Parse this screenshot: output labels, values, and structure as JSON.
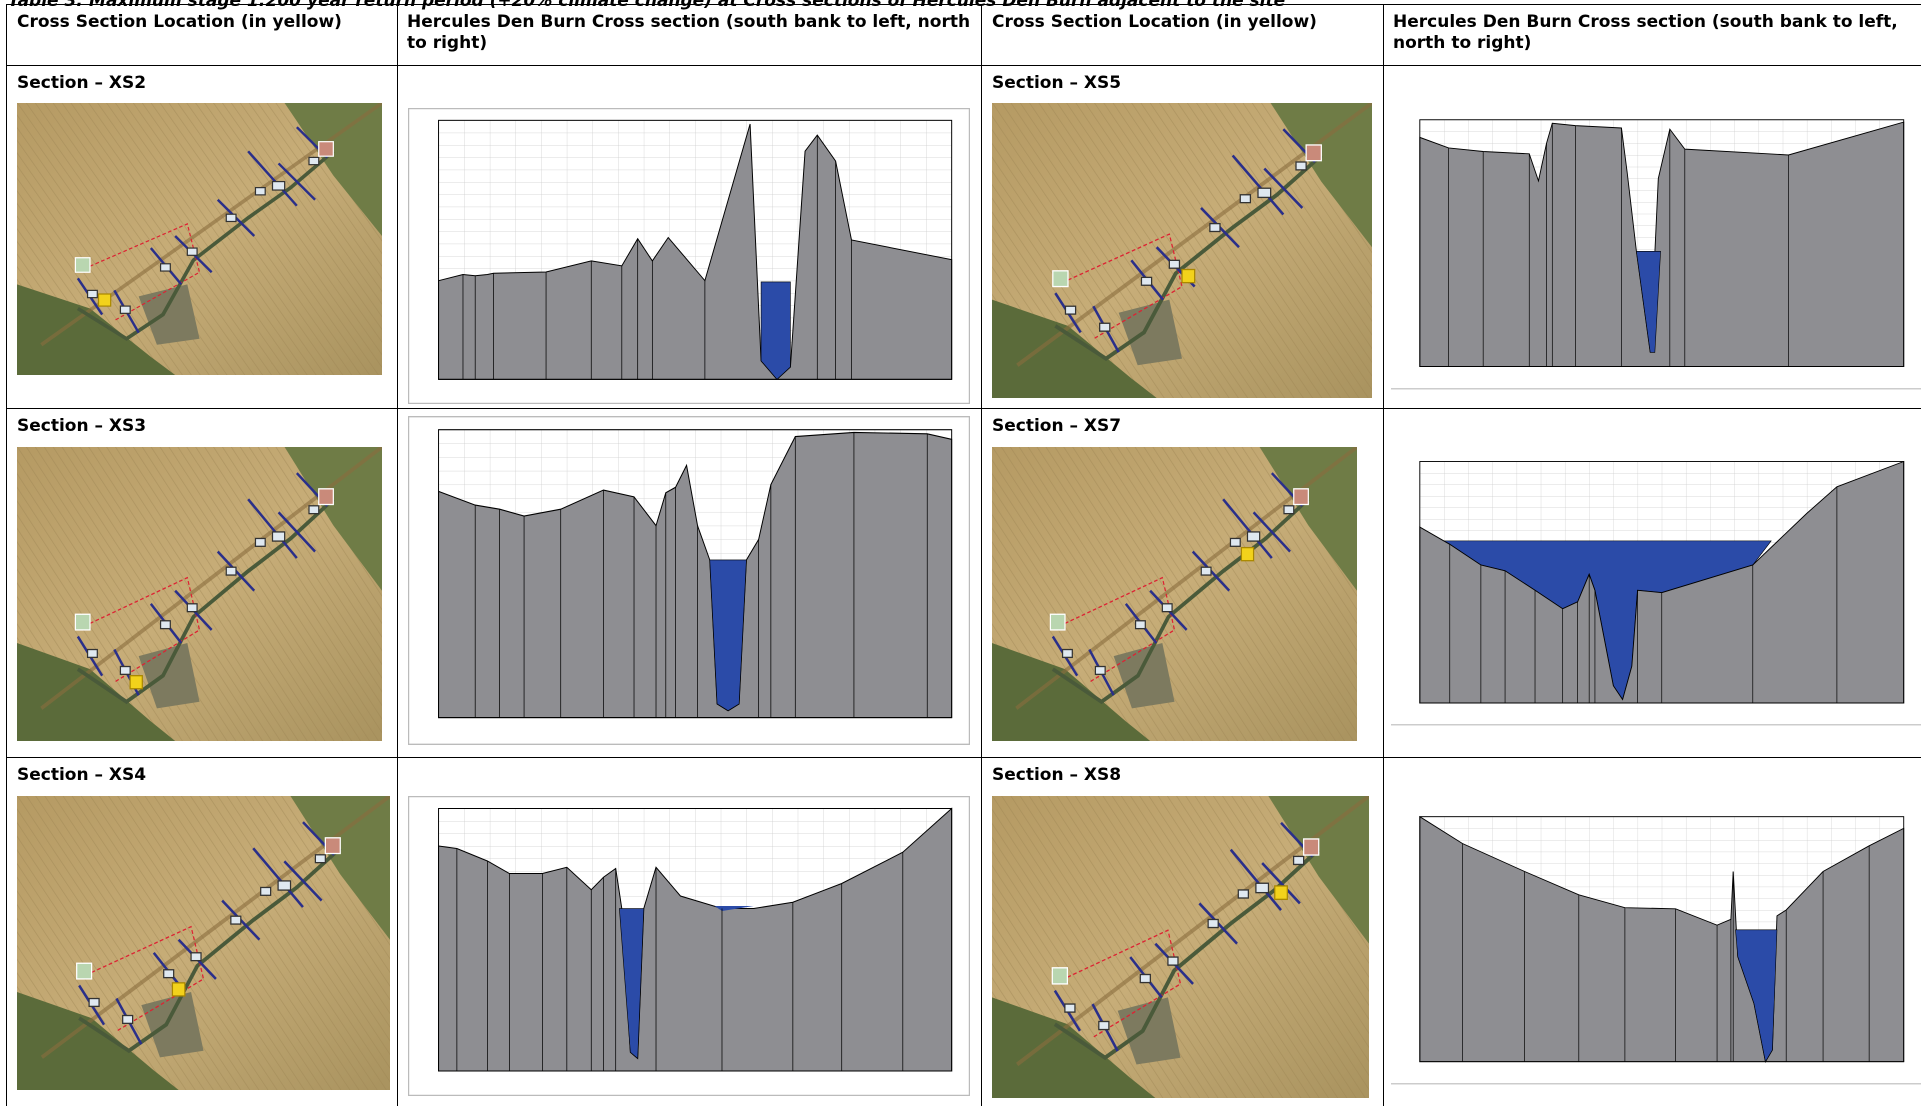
{
  "caption": "Table 3: Maximum stage 1:200 year return period (+20% climate change) at Cross sections of Hercules Den Burn adjacent to the site",
  "table": {
    "header": [
      "Cross Section Location (in yellow)",
      "Hercules Den  Burn Cross section (south bank to left, north to right)",
      "Cross Section Location (in yellow)",
      "Hercules Den  Burn Cross section (south bank to left, north to right)"
    ],
    "rows": [
      [
        "Section – XS2",
        "Section – XS5"
      ],
      [
        "Section – XS3",
        "Section – XS7"
      ],
      [
        "Section – XS4",
        "Section – XS8"
      ]
    ]
  }
}
